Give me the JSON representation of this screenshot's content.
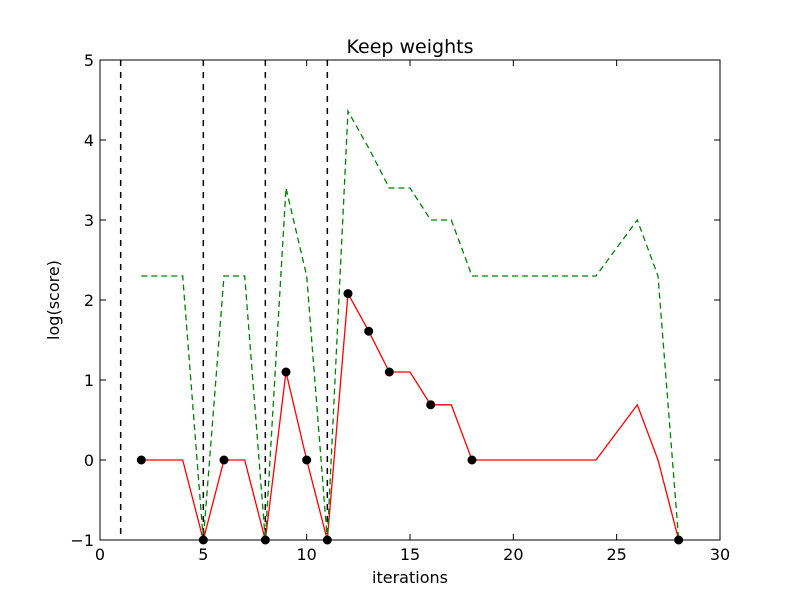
{
  "chart_data": {
    "type": "line",
    "title": "Keep weights",
    "xlabel": "iterations",
    "ylabel": "log(score)",
    "xlim": [
      0,
      30
    ],
    "ylim": [
      -1,
      5
    ],
    "xticks": [
      "0",
      "5",
      "10",
      "15",
      "20",
      "25",
      "30"
    ],
    "yticks": [
      "−1",
      "0",
      "1",
      "2",
      "3",
      "4",
      "5"
    ],
    "grid": false,
    "legend": "none",
    "vlines": [
      1,
      5,
      8,
      11
    ],
    "series": [
      {
        "style": "solid",
        "color": "#ff0000",
        "x": [
          2,
          4,
          5,
          6,
          7,
          8,
          9,
          10,
          11,
          12,
          13,
          14,
          15,
          16,
          17,
          18,
          24,
          26,
          27,
          28
        ],
        "y": [
          0,
          0,
          -1,
          0,
          0,
          -1,
          1.1,
          0,
          -1,
          2.08,
          1.61,
          1.1,
          1.1,
          0.69,
          0.69,
          0,
          0,
          0.69,
          0,
          -1
        ]
      },
      {
        "style": "dashed",
        "color": "#008000",
        "x": [
          2,
          4,
          5,
          6,
          7,
          8,
          9,
          10,
          11,
          12,
          13,
          14,
          15,
          16,
          17,
          18,
          24,
          26,
          27,
          28
        ],
        "y": [
          2.3,
          2.3,
          -1,
          2.3,
          2.3,
          -1,
          3.4,
          2.3,
          -1,
          4.36,
          3.9,
          3.4,
          3.4,
          3.0,
          3.0,
          2.3,
          2.3,
          3.0,
          2.3,
          -1
        ]
      }
    ],
    "markers": {
      "color": "#000000",
      "x": [
        2,
        5,
        6,
        8,
        9,
        10,
        11,
        12,
        13,
        14,
        16,
        18,
        28
      ],
      "y": [
        0,
        -1,
        0,
        -1,
        1.1,
        0,
        -1,
        2.08,
        1.61,
        1.1,
        0.69,
        0,
        -1
      ]
    }
  }
}
